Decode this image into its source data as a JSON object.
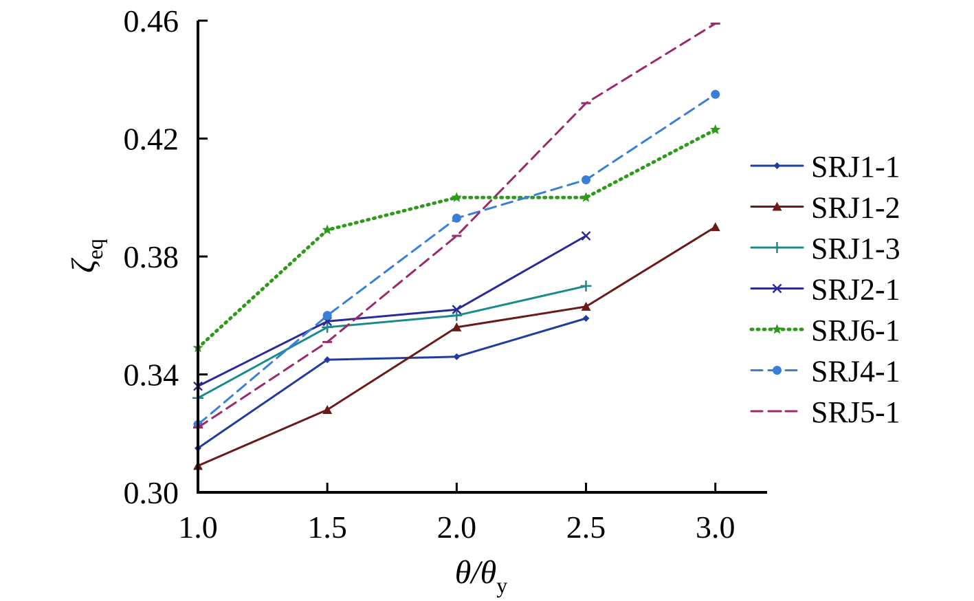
{
  "chart_data": {
    "type": "line",
    "title": "",
    "xlabel": {
      "main": "θ/θ",
      "sub": "y"
    },
    "ylabel": {
      "main": "ζ",
      "sub": "eq"
    },
    "xlim": [
      1.0,
      3.2
    ],
    "ylim": [
      0.3,
      0.46
    ],
    "xticks": [
      1.0,
      1.5,
      2.0,
      2.5,
      3.0
    ],
    "xtick_labels": [
      "1.0",
      "1.5",
      "2.0",
      "2.5",
      "3.0"
    ],
    "yticks": [
      0.3,
      0.34,
      0.38,
      0.42,
      0.46
    ],
    "ytick_labels": [
      "0.30",
      "0.34",
      "0.38",
      "0.42",
      "0.46"
    ],
    "grid": false,
    "legend_position": "right",
    "series": [
      {
        "name": "SRJ1-1",
        "color": "#1f3d9e",
        "line": "solid",
        "marker": "diamond",
        "x": [
          1.0,
          1.5,
          2.0,
          2.5
        ],
        "y": [
          0.315,
          0.345,
          0.346,
          0.359
        ]
      },
      {
        "name": "SRJ1-2",
        "color": "#6b1a1a",
        "line": "solid",
        "marker": "triangle",
        "x": [
          1.0,
          1.5,
          2.0,
          2.5,
          3.0
        ],
        "y": [
          0.309,
          0.328,
          0.356,
          0.363,
          0.39
        ]
      },
      {
        "name": "SRJ1-3",
        "color": "#1a8a8a",
        "line": "solid",
        "marker": "plus",
        "x": [
          1.0,
          1.5,
          2.0,
          2.5
        ],
        "y": [
          0.332,
          0.356,
          0.36,
          0.37
        ]
      },
      {
        "name": "SRJ2-1",
        "color": "#2a2a9a",
        "line": "solid",
        "marker": "x",
        "x": [
          1.0,
          1.5,
          2.0,
          2.5
        ],
        "y": [
          0.336,
          0.358,
          0.362,
          0.387
        ]
      },
      {
        "name": "SRJ6-1",
        "color": "#2e9a1a",
        "line": "dotted",
        "marker": "star",
        "x": [
          1.0,
          1.5,
          2.0,
          2.5,
          3.0
        ],
        "y": [
          0.349,
          0.389,
          0.4,
          0.4,
          0.423
        ]
      },
      {
        "name": "SRJ4-1",
        "color": "#3a7fd6",
        "line": "dashed",
        "marker": "circle",
        "x": [
          1.0,
          1.5,
          2.0,
          2.5,
          3.0
        ],
        "y": [
          0.323,
          0.36,
          0.393,
          0.406,
          0.435
        ]
      },
      {
        "name": "SRJ5-1",
        "color": "#9a2a6a",
        "line": "dashed",
        "marker": "dash",
        "x": [
          1.0,
          1.5,
          2.0,
          2.5,
          3.0
        ],
        "y": [
          0.322,
          0.351,
          0.387,
          0.432,
          0.459
        ]
      }
    ]
  }
}
